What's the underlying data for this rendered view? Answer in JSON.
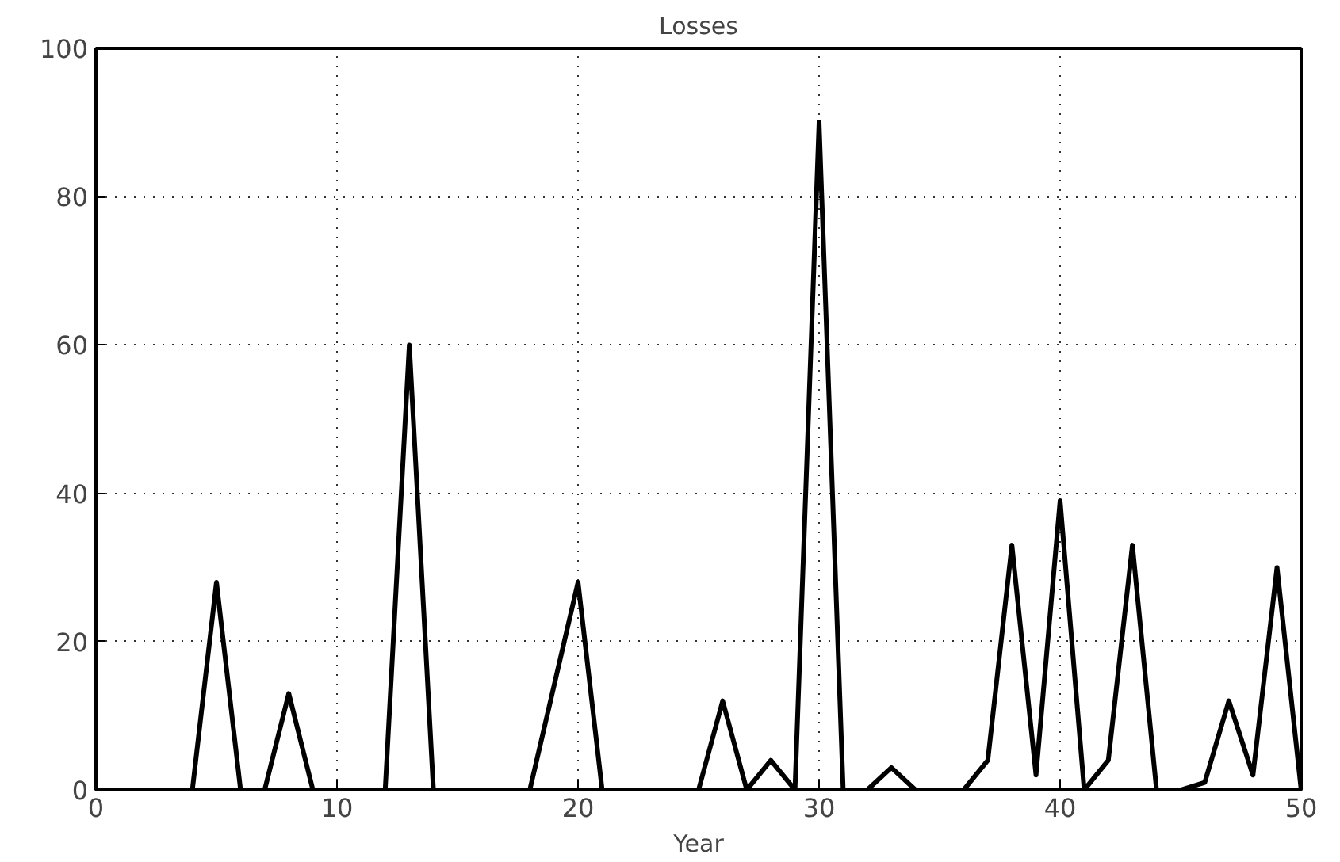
{
  "chart_data": {
    "type": "line",
    "title": "Losses",
    "xlabel": "Year",
    "x": [
      1,
      2,
      3,
      4,
      5,
      6,
      7,
      8,
      9,
      10,
      11,
      12,
      13,
      14,
      15,
      16,
      17,
      18,
      19,
      20,
      21,
      22,
      23,
      24,
      25,
      26,
      27,
      28,
      29,
      30,
      31,
      32,
      33,
      34,
      35,
      36,
      37,
      38,
      39,
      40,
      41,
      42,
      43,
      44,
      45,
      46,
      47,
      48,
      49,
      50
    ],
    "series": [
      {
        "color": "#000000",
        "values": [
          0,
          0,
          0,
          0,
          28,
          0,
          0,
          13,
          0,
          0,
          0,
          0,
          60,
          0,
          0,
          0,
          0,
          0,
          14,
          28,
          0,
          0,
          0,
          0,
          0,
          12,
          0,
          4,
          0,
          90,
          0,
          0,
          3,
          0,
          0,
          0,
          4,
          33,
          2,
          39,
          0,
          4,
          33,
          0,
          0,
          1,
          12,
          2,
          30,
          0
        ]
      }
    ],
    "xlim": [
      0,
      50
    ],
    "ylim": [
      0,
      100
    ],
    "xticks": [
      0,
      10,
      20,
      30,
      40,
      50
    ],
    "yticks": [
      0,
      20,
      40,
      60,
      80,
      100
    ],
    "grid": true,
    "line_style": "solid"
  }
}
